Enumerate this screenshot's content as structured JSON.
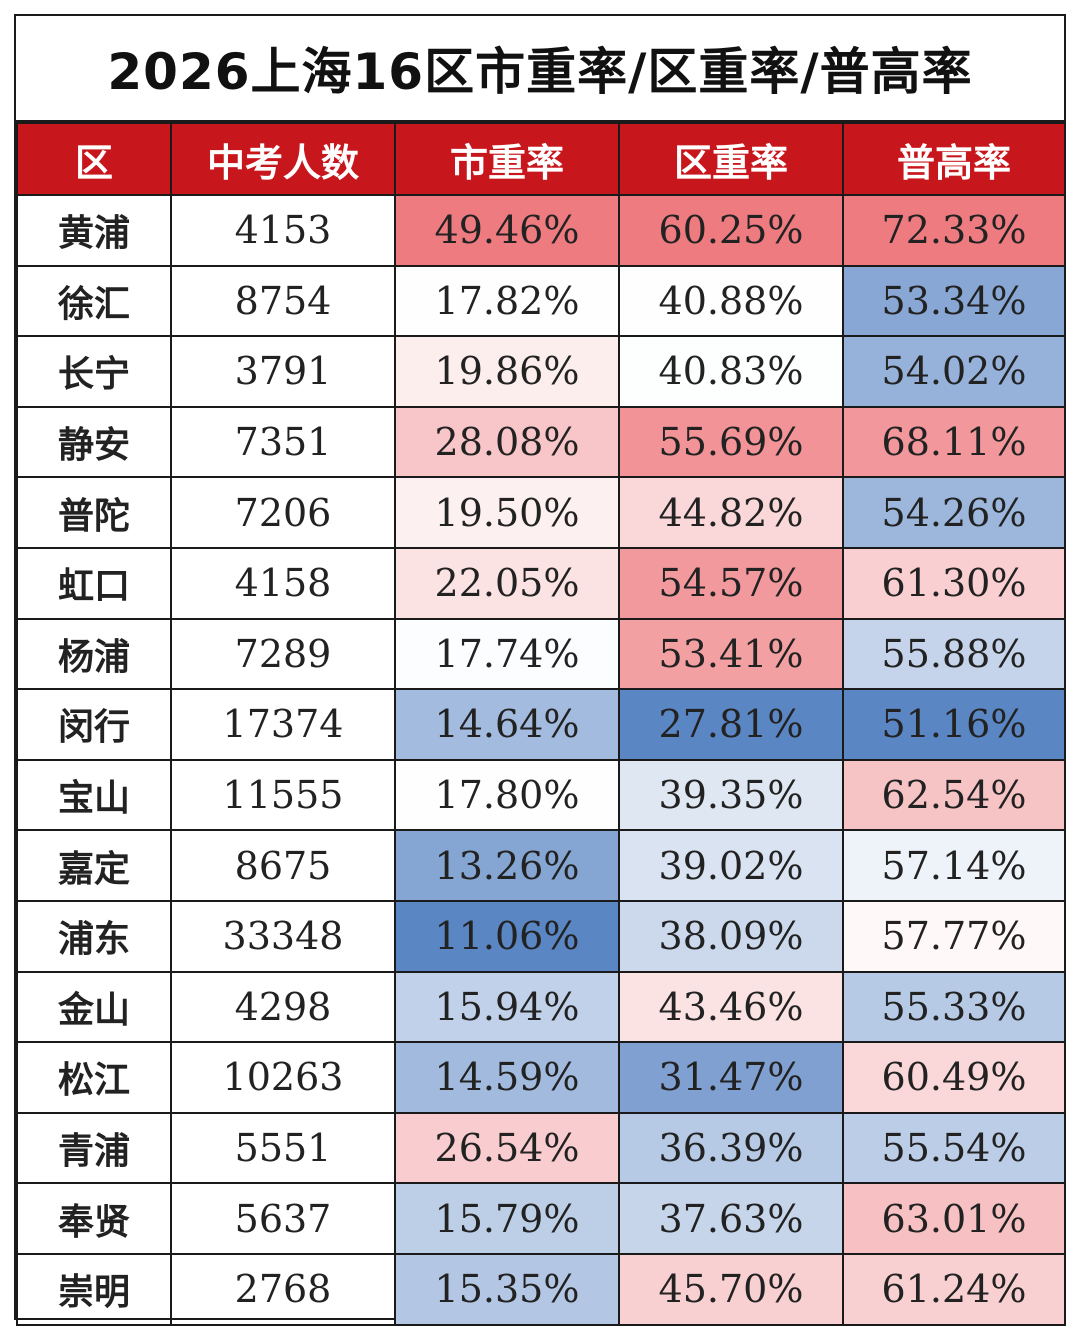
{
  "title": "2026上海16区市重率/区重率/普高率",
  "colors": {
    "header_bg": "#c8161d",
    "high": "#ee7b80",
    "mid": "#ffffff",
    "low": "#5b86c4"
  },
  "headers": [
    "区",
    "中考人数",
    "市重率",
    "区重率",
    "普高率"
  ],
  "rows": [
    {
      "district": "黄浦",
      "count": "4153",
      "city": "49.46%",
      "dist": "60.25%",
      "general": "72.33%"
    },
    {
      "district": "徐汇",
      "count": "8754",
      "city": "17.82%",
      "dist": "40.88%",
      "general": "53.34%"
    },
    {
      "district": "长宁",
      "count": "3791",
      "city": "19.86%",
      "dist": "40.83%",
      "general": "54.02%"
    },
    {
      "district": "静安",
      "count": "7351",
      "city": "28.08%",
      "dist": "55.69%",
      "general": "68.11%"
    },
    {
      "district": "普陀",
      "count": "7206",
      "city": "19.50%",
      "dist": "44.82%",
      "general": "54.26%"
    },
    {
      "district": "虹口",
      "count": "4158",
      "city": "22.05%",
      "dist": "54.57%",
      "general": "61.30%"
    },
    {
      "district": "杨浦",
      "count": "7289",
      "city": "17.74%",
      "dist": "53.41%",
      "general": "55.88%"
    },
    {
      "district": "闵行",
      "count": "17374",
      "city": "14.64%",
      "dist": "27.81%",
      "general": "51.16%"
    },
    {
      "district": "宝山",
      "count": "11555",
      "city": "17.80%",
      "dist": "39.35%",
      "general": "62.54%"
    },
    {
      "district": "嘉定",
      "count": "8675",
      "city": "13.26%",
      "dist": "39.02%",
      "general": "57.14%"
    },
    {
      "district": "浦东",
      "count": "33348",
      "city": "11.06%",
      "dist": "38.09%",
      "general": "57.77%"
    },
    {
      "district": "金山",
      "count": "4298",
      "city": "15.94%",
      "dist": "43.46%",
      "general": "55.33%"
    },
    {
      "district": "松江",
      "count": "10263",
      "city": "14.59%",
      "dist": "31.47%",
      "general": "60.49%"
    },
    {
      "district": "青浦",
      "count": "5551",
      "city": "26.54%",
      "dist": "36.39%",
      "general": "55.54%"
    },
    {
      "district": "奉贤",
      "count": "5637",
      "city": "15.79%",
      "dist": "37.63%",
      "general": "63.01%"
    },
    {
      "district": "崇明",
      "count": "2768",
      "city": "15.35%",
      "dist": "45.70%",
      "general": "61.24%"
    }
  ]
}
